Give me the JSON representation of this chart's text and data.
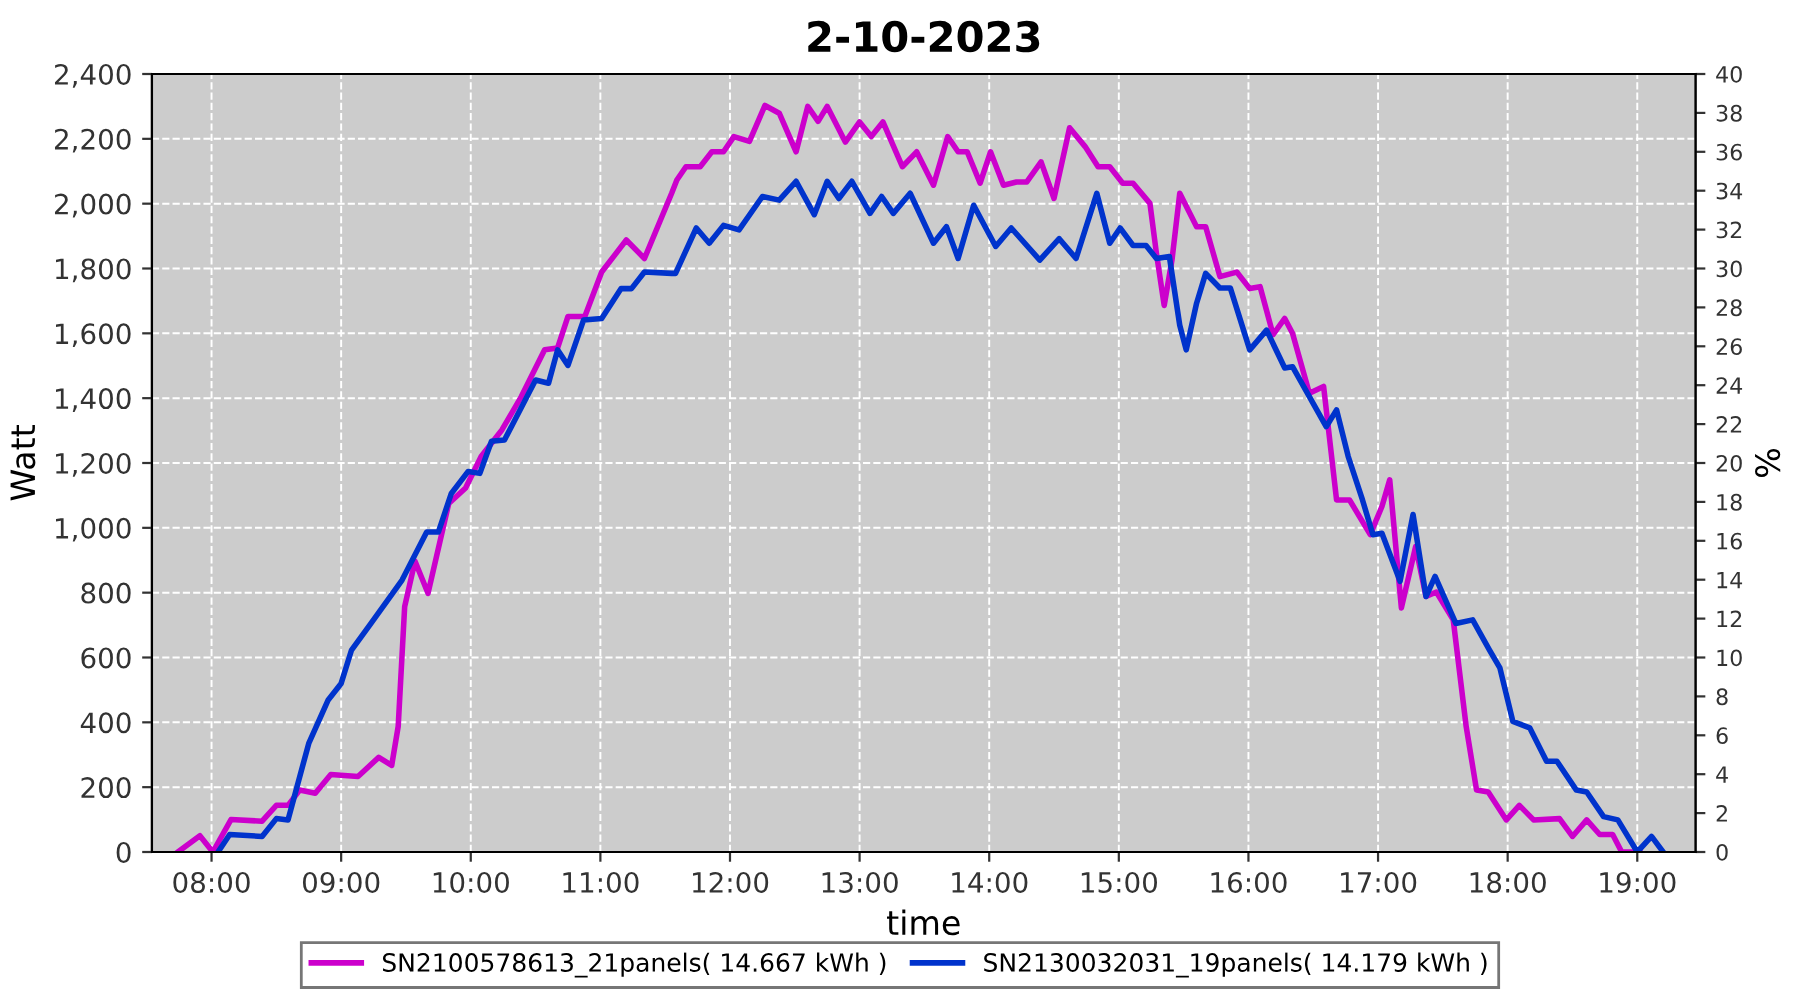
{
  "chart_data": {
    "type": "line",
    "title": "2-10-2023",
    "xlabel": "time",
    "ylabel": "Watt",
    "y2label": "%",
    "xlim": [
      7.54,
      19.45
    ],
    "xticks": [
      {
        "value": 8,
        "label": "08:00"
      },
      {
        "value": 9,
        "label": "09:00"
      },
      {
        "value": 10,
        "label": "10:00"
      },
      {
        "value": 11,
        "label": "11:00"
      },
      {
        "value": 12,
        "label": "12:00"
      },
      {
        "value": 13,
        "label": "13:00"
      },
      {
        "value": 14,
        "label": "14:00"
      },
      {
        "value": 15,
        "label": "15:00"
      },
      {
        "value": 16,
        "label": "16:00"
      },
      {
        "value": 17,
        "label": "17:00"
      },
      {
        "value": 18,
        "label": "18:00"
      },
      {
        "value": 19,
        "label": "19:00"
      }
    ],
    "ylim": [
      0,
      2400
    ],
    "yticks": [
      0,
      200,
      400,
      600,
      800,
      {
        "value": 1000,
        "label": "1,000"
      },
      {
        "value": 1200,
        "label": "1,200"
      },
      {
        "value": 1400,
        "label": "1,400"
      },
      {
        "value": 1600,
        "label": "1,600"
      },
      {
        "value": 1800,
        "label": "1,800"
      },
      {
        "value": 2000,
        "label": "2,000"
      },
      {
        "value": 2200,
        "label": "2,200"
      },
      {
        "value": 2400,
        "label": "2,400"
      }
    ],
    "y2lim": [
      0,
      40
    ],
    "y2ticks": [
      0,
      2,
      4,
      6,
      8,
      10,
      12,
      14,
      16,
      18,
      20,
      22,
      24,
      26,
      28,
      30,
      32,
      34,
      36,
      38,
      40
    ],
    "grid": true,
    "legend": "bottom",
    "line_style": "solid",
    "series": [
      {
        "name": "SN2100578613_21panels( 14.667 kWh )",
        "color": "#cc00cc",
        "x": [
          7.74,
          7.91,
          8.01,
          8.15,
          8.39,
          8.5,
          8.59,
          8.68,
          8.8,
          8.92,
          9.13,
          9.29,
          9.39,
          9.44,
          9.49,
          9.57,
          9.67,
          9.83,
          9.96,
          10.08,
          10.24,
          10.39,
          10.57,
          10.67,
          10.75,
          10.88,
          11.01,
          11.2,
          11.34,
          11.55,
          11.59,
          11.66,
          11.77,
          11.86,
          11.95,
          12.03,
          12.15,
          12.27,
          12.38,
          12.51,
          12.6,
          12.68,
          12.75,
          12.89,
          13.0,
          13.09,
          13.18,
          13.33,
          13.44,
          13.57,
          13.68,
          13.76,
          13.83,
          13.93,
          14.01,
          14.11,
          14.21,
          14.29,
          14.4,
          14.5,
          14.62,
          14.74,
          14.84,
          14.93,
          15.03,
          15.11,
          15.24,
          15.29,
          15.35,
          15.41,
          15.47,
          15.6,
          15.67,
          15.78,
          15.91,
          16.01,
          16.09,
          16.19,
          16.28,
          16.34,
          16.47,
          16.58,
          16.68,
          16.78,
          16.94,
          17.03,
          17.09,
          17.18,
          17.29,
          17.37,
          17.45,
          17.58,
          17.68,
          17.76,
          17.85,
          17.99,
          18.09,
          18.2,
          18.4,
          18.5,
          18.61,
          18.71,
          18.81,
          18.88,
          19.02
        ],
        "values": [
          0,
          50,
          0,
          100,
          95,
          144,
          144,
          191,
          181,
          239,
          233,
          292,
          267,
          387,
          757,
          897,
          798,
          1075,
          1123,
          1220,
          1302,
          1405,
          1549,
          1555,
          1652,
          1652,
          1789,
          1888,
          1831,
          2032,
          2073,
          2114,
          2114,
          2160,
          2160,
          2207,
          2192,
          2303,
          2279,
          2160,
          2300,
          2254,
          2300,
          2190,
          2252,
          2207,
          2252,
          2114,
          2160,
          2057,
          2207,
          2160,
          2160,
          2063,
          2160,
          2057,
          2067,
          2067,
          2129,
          2016,
          2234,
          2176,
          2114,
          2114,
          2063,
          2063,
          2001,
          1847,
          1686,
          1826,
          2032,
          1929,
          1929,
          1775,
          1789,
          1738,
          1744,
          1596,
          1646,
          1600,
          1415,
          1436,
          1086,
          1086,
          979,
          1066,
          1148,
          753,
          942,
          788,
          802,
          716,
          387,
          191,
          185,
          99,
          144,
          99,
          103,
          48,
          99,
          54,
          54,
          0,
          0
        ]
      },
      {
        "name": "SN2130032031_19panels( 14.179 kWh )",
        "color": "#0033cc",
        "x": [
          8.05,
          8.14,
          8.39,
          8.5,
          8.59,
          8.75,
          8.9,
          9.0,
          9.08,
          9.23,
          9.47,
          9.66,
          9.75,
          9.85,
          9.98,
          10.07,
          10.16,
          10.26,
          10.5,
          10.6,
          10.67,
          10.75,
          10.87,
          11.01,
          11.16,
          11.24,
          11.34,
          11.55,
          11.58,
          11.74,
          11.84,
          11.95,
          12.07,
          12.25,
          12.38,
          12.51,
          12.65,
          12.75,
          12.84,
          12.94,
          13.08,
          13.17,
          13.26,
          13.39,
          13.57,
          13.67,
          13.76,
          13.88,
          14.05,
          14.17,
          14.39,
          14.54,
          14.67,
          14.83,
          14.93,
          15.01,
          15.11,
          15.21,
          15.29,
          15.39,
          15.47,
          15.52,
          15.6,
          15.67,
          15.78,
          15.86,
          16.01,
          16.14,
          16.28,
          16.34,
          16.6,
          16.68,
          16.77,
          16.88,
          16.96,
          17.03,
          17.17,
          17.27,
          17.37,
          17.44,
          17.6,
          17.73,
          17.86,
          17.94,
          18.04,
          18.17,
          18.3,
          18.38,
          18.53,
          18.61,
          18.74,
          18.85,
          19.0,
          19.11,
          19.2
        ],
        "values": [
          0,
          54,
          48,
          103,
          99,
          335,
          469,
          520,
          623,
          705,
          839,
          987,
          987,
          1106,
          1174,
          1168,
          1267,
          1271,
          1456,
          1446,
          1549,
          1501,
          1641,
          1646,
          1738,
          1738,
          1789,
          1785,
          1785,
          1925,
          1878,
          1933,
          1919,
          2022,
          2011,
          2069,
          1966,
          2069,
          2016,
          2069,
          1970,
          2022,
          1970,
          2032,
          1878,
          1929,
          1831,
          1995,
          1868,
          1925,
          1826,
          1892,
          1831,
          2032,
          1878,
          1925,
          1871,
          1871,
          1831,
          1837,
          1625,
          1549,
          1693,
          1785,
          1740,
          1740,
          1549,
          1610,
          1493,
          1497,
          1312,
          1364,
          1220,
          1086,
          979,
          983,
          835,
          1041,
          788,
          850,
          705,
          716,
          623,
          568,
          403,
          383,
          280,
          280,
          191,
          185,
          109,
          99,
          0,
          48,
          0
        ]
      }
    ]
  }
}
